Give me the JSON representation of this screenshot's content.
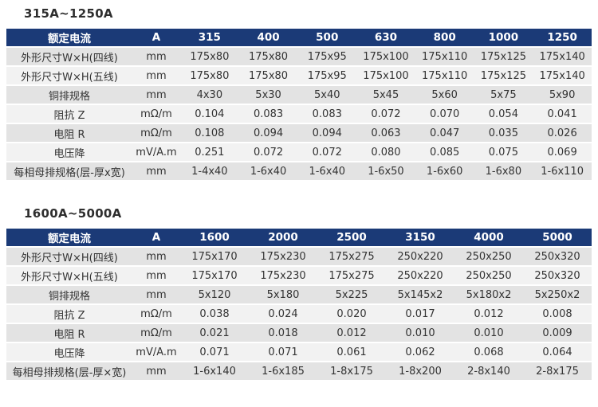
{
  "colors": {
    "header_bg": "#1b3a77",
    "header_text": "#ffffff",
    "row_odd_bg": "#e3e3e3",
    "row_even_bg": "#f2f2f2",
    "title_text": "#2e2e2e",
    "cell_text": "#333333",
    "page_bg": "#ffffff"
  },
  "tables": [
    {
      "title": "315A~1250A",
      "header": [
        "额定电流",
        "A",
        "315",
        "400",
        "500",
        "630",
        "800",
        "1000",
        "1250"
      ],
      "rows": [
        [
          "外形尺寸W×H(四线)",
          "mm",
          "175x80",
          "175x80",
          "175x95",
          "175x100",
          "175x110",
          "175x125",
          "175x140"
        ],
        [
          "外形尺寸W×H(五线)",
          "mm",
          "175x80",
          "175x80",
          "175x95",
          "175x100",
          "175x110",
          "175x125",
          "175x140"
        ],
        [
          "铜排规格",
          "mm",
          "4x30",
          "5x30",
          "5x40",
          "5x45",
          "5x60",
          "5x75",
          "5x90"
        ],
        [
          "阻抗 Z",
          "mΩ/m",
          "0.104",
          "0.083",
          "0.083",
          "0.072",
          "0.070",
          "0.054",
          "0.041"
        ],
        [
          "电阻 R",
          "mΩ/m",
          "0.108",
          "0.094",
          "0.094",
          "0.063",
          "0.047",
          "0.035",
          "0.026"
        ],
        [
          "电压降",
          "mV/A.m",
          "0.251",
          "0.072",
          "0.072",
          "0.080",
          "0.085",
          "0.075",
          "0.069"
        ],
        [
          "每相母排规格(层-厚x宽)",
          "mm",
          "1-4x40",
          "1-6x40",
          "1-6x40",
          "1-6x50",
          "1-6x60",
          "1-6x80",
          "1-6x110"
        ]
      ]
    },
    {
      "title": "1600A~5000A",
      "header": [
        "额定电流",
        "A",
        "1600",
        "2000",
        "2500",
        "3150",
        "4000",
        "5000"
      ],
      "rows": [
        [
          "外形尺寸W×H(四线)",
          "mm",
          "175x170",
          "175x230",
          "175x275",
          "250x220",
          "250x250",
          "250x320"
        ],
        [
          "外形尺寸W×H(五线)",
          "mm",
          "175x170",
          "175x230",
          "175x275",
          "250x220",
          "250x250",
          "250x320"
        ],
        [
          "铜排规格",
          "mm",
          "5x120",
          "5x180",
          "5x225",
          "5x145x2",
          "5x180x2",
          "5x250x2"
        ],
        [
          "阻抗 Z",
          "mΩ/m",
          "0.038",
          "0.024",
          "0.020",
          "0.017",
          "0.012",
          "0.008"
        ],
        [
          "电阻 R",
          "mΩ/m",
          "0.021",
          "0.018",
          "0.012",
          "0.010",
          "0.010",
          "0.009"
        ],
        [
          "电压降",
          "mV/A.m",
          "0.071",
          "0.071",
          "0.061",
          "0.062",
          "0.068",
          "0.064"
        ],
        [
          "每相母排规格(层-厚×宽)",
          "mm",
          "1-6x140",
          "1-6x185",
          "1-8x175",
          "1-8x200",
          "2-8x140",
          "2-8x175"
        ]
      ]
    }
  ]
}
